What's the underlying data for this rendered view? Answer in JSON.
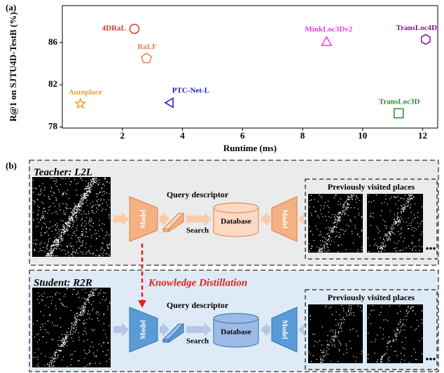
{
  "panel_a_label": "(a)",
  "chart_data": {
    "type": "scatter",
    "xlabel": "Runtime (ms)",
    "ylabel": "R@1 on SJTU4D-TestB (%)",
    "xlim": [
      0,
      12.5
    ],
    "ylim": [
      77.9,
      89.5
    ],
    "xticks": [
      2,
      4,
      6,
      8,
      10,
      12
    ],
    "yticks": [
      78,
      82,
      86
    ],
    "series": [
      {
        "name": "4DRaL",
        "color": "#e0302a",
        "marker": "circle",
        "x": [
          2.4
        ],
        "values": [
          87.3
        ]
      },
      {
        "name": "RaLF",
        "color": "#f07a5a",
        "marker": "pentagon",
        "x": [
          2.8
        ],
        "values": [
          84.5
        ]
      },
      {
        "name": "Autoplace",
        "color": "#f0a020",
        "marker": "star",
        "x": [
          0.6
        ],
        "values": [
          80.2
        ]
      },
      {
        "name": "PTC-Net-L",
        "color": "#1a1acc",
        "marker": "triangle-left",
        "x": [
          3.6
        ],
        "values": [
          80.3
        ]
      },
      {
        "name": "MinkLoc3Dv2",
        "color": "#e040e0",
        "marker": "triangle-up",
        "x": [
          8.8
        ],
        "values": [
          86.1
        ]
      },
      {
        "name": "TransLoc4D",
        "color": "#7a1a8a",
        "marker": "hexagon",
        "x": [
          12.1
        ],
        "values": [
          86.3
        ]
      },
      {
        "name": "TransLoc3D",
        "color": "#2a8a2a",
        "marker": "square",
        "x": [
          11.2
        ],
        "values": [
          79.3
        ]
      }
    ]
  },
  "panel_b_label": "(b)",
  "teacher": {
    "title": "Teacher: L2L",
    "model": "Model",
    "query_descriptor": "Query descriptor",
    "search": "Search",
    "database": "Database",
    "database_model": "Model",
    "gallery_title": "Previously visited places"
  },
  "student": {
    "title": "Student: R2R",
    "model": "Model",
    "query_descriptor": "Query descriptor",
    "search": "Search",
    "database": "Database",
    "database_model": "Model",
    "gallery_title": "Previously visited places"
  },
  "distillation": "Knowledge Distillation"
}
